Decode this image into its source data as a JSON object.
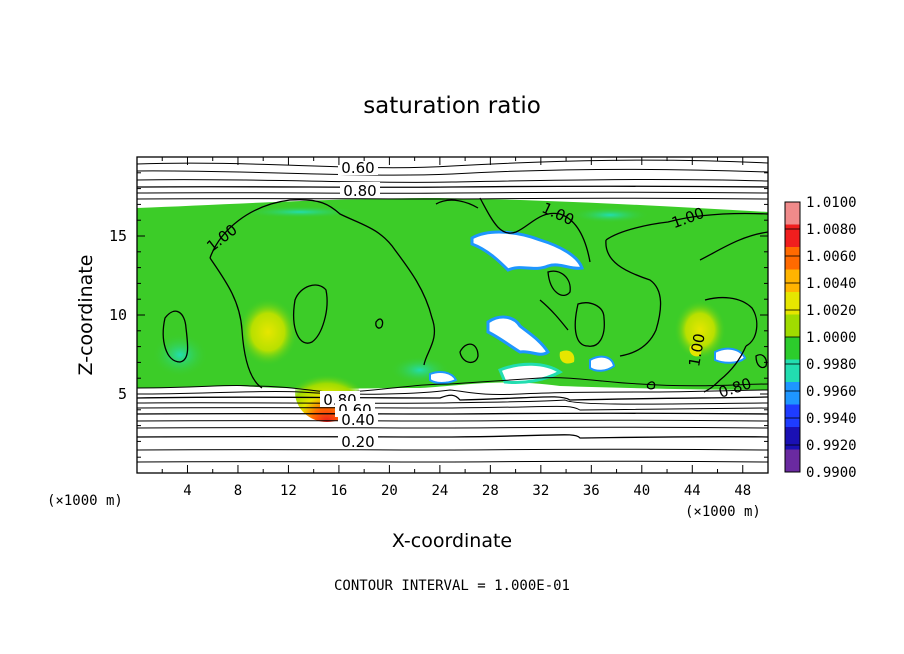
{
  "chart_data": {
    "type": "heatmap",
    "title": "saturation ratio",
    "xlabel": "X-coordinate",
    "ylabel": "Z-coordinate",
    "x_unit": "(×1000 m)",
    "y_unit": "(×1000 m)",
    "xlim": [
      0,
      50
    ],
    "ylim": [
      0,
      20
    ],
    "x_ticks": [
      "4",
      "8",
      "12",
      "16",
      "20",
      "24",
      "28",
      "32",
      "36",
      "40",
      "44",
      "48"
    ],
    "y_ticks": [
      "5",
      "10",
      "15"
    ],
    "colorbar": {
      "levels": [
        "1.0100",
        "1.0080",
        "1.0060",
        "1.0040",
        "1.0020",
        "1.0000",
        "0.9980",
        "0.9960",
        "0.9940",
        "0.9920",
        "0.9900"
      ],
      "colors": [
        "#f08a8a",
        "#f01e1e",
        "#ff6a00",
        "#ffb400",
        "#e6e600",
        "#a0dc00",
        "#2ccc2c",
        "#22ddb0",
        "#1e96ff",
        "#1e3cff",
        "#1a10b4",
        "#6a2aa0"
      ]
    },
    "contour_labels": [
      "0.60",
      "0.80",
      "1.00",
      "1.00",
      "1.00",
      "1.00",
      "0.80",
      "0.60",
      "0.40",
      "0.20",
      "0.80"
    ],
    "contour_interval_text": "CONTOUR INTERVAL = 1.000E-01"
  }
}
